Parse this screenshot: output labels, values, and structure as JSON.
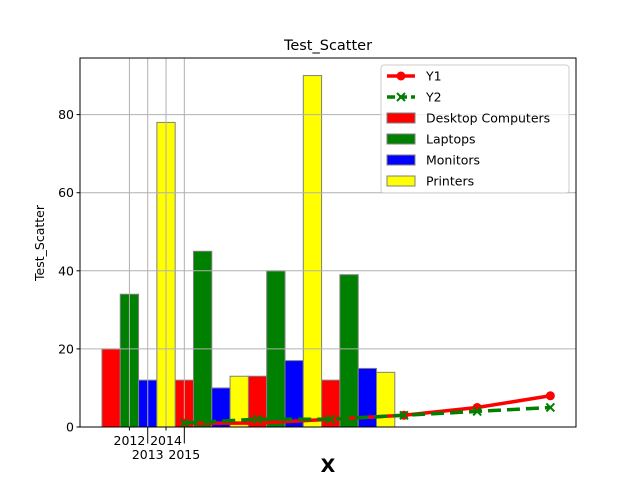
{
  "chart_data": {
    "type": "bar",
    "title": "Test_Scatter",
    "xlabel": "X",
    "ylabel": "Test_Scatter",
    "xlim": [
      2009.3,
      2036.4
    ],
    "ylim": [
      0,
      94.5
    ],
    "grid": true,
    "legend_placement": "upper right",
    "x_ticks": [
      2012,
      2013,
      2014,
      2015
    ],
    "x_tick_labels": [
      "2012",
      "2013",
      "2014",
      "2015"
    ],
    "y_ticks": [
      0,
      20,
      40,
      60,
      80
    ],
    "y_tick_labels": [
      "0",
      "20",
      "40",
      "60",
      "80"
    ],
    "bar_width": 1,
    "bar_series": [
      {
        "name": "Desktop Computers",
        "color": "#ff0000",
        "x": [
          2011,
          2015,
          2019,
          2023
        ],
        "values": [
          20,
          12,
          13,
          12
        ]
      },
      {
        "name": "Laptops",
        "color": "#008000",
        "x": [
          2012,
          2016,
          2020,
          2024
        ],
        "values": [
          34,
          45,
          40,
          39
        ]
      },
      {
        "name": "Monitors",
        "color": "#0000ff",
        "x": [
          2013,
          2017,
          2021,
          2025
        ],
        "values": [
          12,
          10,
          17,
          15
        ]
      },
      {
        "name": "Printers",
        "color": "#ffff00",
        "x": [
          2014,
          2018,
          2022,
          2026
        ],
        "values": [
          78,
          13,
          90,
          14
        ]
      }
    ],
    "line_series": [
      {
        "name": "Y1",
        "color": "#ff0000",
        "style": "solid",
        "marker": "circle",
        "x": [
          2015,
          2019,
          2023,
          2027,
          2031,
          2035
        ],
        "values": [
          1,
          1,
          2,
          3,
          5,
          8
        ]
      },
      {
        "name": "Y2",
        "color": "#008000",
        "style": "dashed",
        "marker": "x",
        "x": [
          2015,
          2019,
          2023,
          2027,
          2031,
          2035
        ],
        "values": [
          1,
          2,
          2,
          3,
          4,
          5
        ]
      }
    ]
  }
}
